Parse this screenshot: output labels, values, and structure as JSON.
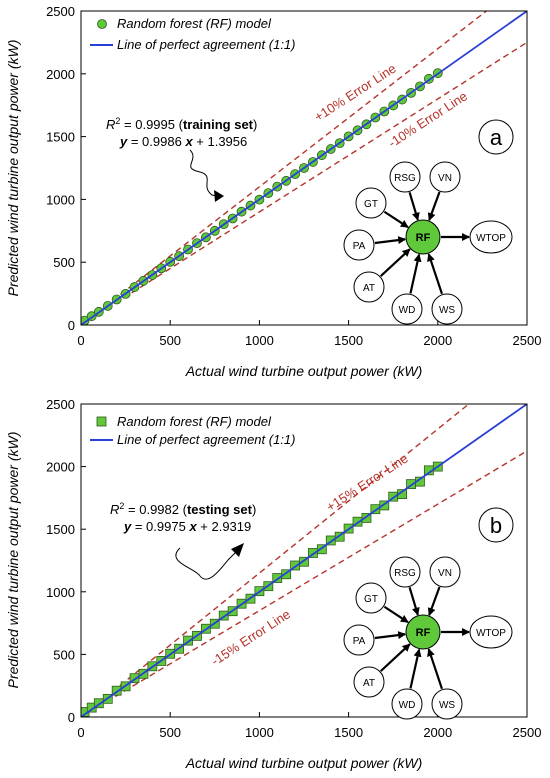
{
  "chart_data": [
    {
      "type": "scatter",
      "panel_label": "a",
      "marker": "circle",
      "xlabel": "Actual wind turbine output power (kW)",
      "ylabel": "Predicted wind turbine output power (kW)",
      "xlim": [
        0,
        2500
      ],
      "ylim": [
        0,
        2500
      ],
      "xticks": [
        "0",
        "500",
        "1000",
        "1500",
        "2000",
        "2500"
      ],
      "yticks": [
        "0",
        "500",
        "1000",
        "1500",
        "2000",
        "2500"
      ],
      "legend": {
        "placement": "top-left",
        "entries": [
          "Random forest (RF) model",
          "Line of perfect agreement (1:1)"
        ]
      },
      "fit": {
        "r2_prefix": "R",
        "r2_sup": "2",
        "r2_value": " = 0.9995 (",
        "set_label": "training set",
        "r2_close": ")",
        "eq_y": "y",
        "eq_mid": " = 0.9986 ",
        "eq_x": "x",
        "eq_end": " + 1.3956"
      },
      "error_lines": {
        "upper_label": "+10% Error Line",
        "lower_label": "-10% Error Line",
        "percent": 10
      },
      "series": [
        {
          "name": "Random forest (RF) model",
          "color": "#5fc93b",
          "x": [
            20,
            60,
            100,
            150,
            200,
            250,
            300,
            350,
            400,
            450,
            500,
            550,
            600,
            650,
            700,
            750,
            800,
            850,
            900,
            950,
            1000,
            1050,
            1100,
            1150,
            1200,
            1250,
            1300,
            1350,
            1400,
            1450,
            1500,
            1550,
            1600,
            1650,
            1700,
            1750,
            1800,
            1850,
            1900,
            1950,
            2000
          ],
          "y": [
            35,
            70,
            105,
            152,
            203,
            248,
            302,
            352,
            398,
            452,
            503,
            548,
            601,
            652,
            698,
            750,
            803,
            848,
            902,
            951,
            998,
            1050,
            1102,
            1148,
            1201,
            1250,
            1298,
            1352,
            1401,
            1448,
            1502,
            1550,
            1598,
            1652,
            1700,
            1748,
            1795,
            1848,
            1900,
            1960,
            2005
          ]
        }
      ]
    },
    {
      "type": "scatter",
      "panel_label": "b",
      "marker": "square",
      "xlabel": "Actual wind turbine output power (kW)",
      "ylabel": "Predicted wind turbine output power (kW)",
      "xlim": [
        0,
        2500
      ],
      "ylim": [
        0,
        2500
      ],
      "xticks": [
        "0",
        "500",
        "1000",
        "1500",
        "2000",
        "2500"
      ],
      "yticks": [
        "0",
        "500",
        "1000",
        "1500",
        "2000",
        "2500"
      ],
      "legend": {
        "placement": "top-left",
        "entries": [
          "Random forest (RF) model",
          "Line of perfect agreement (1:1)"
        ]
      },
      "fit": {
        "r2_prefix": "R",
        "r2_sup": "2",
        "r2_value": " = 0.9982 (",
        "set_label": "testing set",
        "r2_close": ")",
        "eq_y": "y",
        "eq_mid": " = 0.9975 ",
        "eq_x": "x",
        "eq_end": " + 2.9319"
      },
      "error_lines": {
        "upper_label": "+15% Error Line",
        "lower_label": "-15% Error Line",
        "percent": 15
      },
      "series": [
        {
          "name": "Random forest (RF) model",
          "color": "#5fc93b",
          "x": [
            20,
            60,
            100,
            150,
            200,
            250,
            300,
            350,
            400,
            450,
            500,
            550,
            600,
            650,
            700,
            750,
            800,
            850,
            900,
            950,
            1000,
            1050,
            1100,
            1150,
            1200,
            1250,
            1300,
            1350,
            1400,
            1450,
            1500,
            1550,
            1600,
            1650,
            1700,
            1750,
            1800,
            1850,
            1900,
            1950,
            2000
          ],
          "y": [
            40,
            75,
            110,
            145,
            210,
            245,
            310,
            345,
            405,
            448,
            505,
            545,
            610,
            648,
            705,
            745,
            810,
            845,
            905,
            945,
            1005,
            1045,
            1110,
            1140,
            1210,
            1240,
            1310,
            1340,
            1410,
            1440,
            1505,
            1560,
            1590,
            1660,
            1690,
            1760,
            1780,
            1860,
            1880,
            1970,
            2000
          ]
        }
      ]
    }
  ],
  "diagram": {
    "inputs": [
      "GT",
      "RSG",
      "VN",
      "PA",
      "AT",
      "WD",
      "WS"
    ],
    "center": "RF",
    "output": "WTOP",
    "center_color": "#5fc93b"
  },
  "colors": {
    "one_to_one": "#2a3fd6",
    "error_line": "#b5342b",
    "marker_edge": "#2d5a1a"
  }
}
